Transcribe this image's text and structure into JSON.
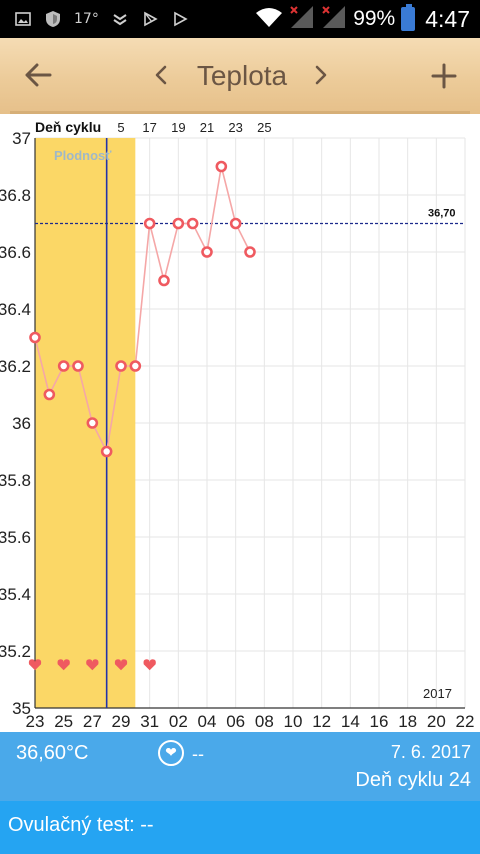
{
  "status_bar": {
    "left_icons": [
      "gallery-icon",
      "shield-icon",
      "weather-icon",
      "notification-icon",
      "play-store-icon",
      "play-store-icon"
    ],
    "temperature": "17°",
    "battery_percent": "99%",
    "time": "4:47"
  },
  "toolbar": {
    "back_icon": "←",
    "prev_icon": "‹",
    "title": "Teplota",
    "next_icon": "›",
    "add_icon": "+"
  },
  "chart_data": {
    "type": "line",
    "title": "Deň cyklu",
    "top_axis_ticks": [
      "5",
      "17",
      "19",
      "21",
      "23",
      "25"
    ],
    "x_tick_labels": [
      "23",
      "25",
      "27",
      "29",
      "31",
      "02",
      "04",
      "06",
      "08",
      "10",
      "12",
      "14",
      "16",
      "18",
      "20",
      "22"
    ],
    "y_tick_labels": [
      "37",
      "36.8",
      "36.6",
      "36.4",
      "36.2",
      "36",
      "35.8",
      "35.6",
      "35.4",
      "35.2",
      "35"
    ],
    "ylim": [
      35,
      37
    ],
    "x_day_range": [
      0,
      30
    ],
    "x_days": [
      0,
      1,
      2,
      3,
      4,
      5,
      6,
      7,
      8,
      9,
      10,
      11,
      12,
      13,
      14,
      15
    ],
    "values": [
      36.3,
      36.1,
      36.2,
      36.2,
      36.0,
      35.9,
      36.2,
      36.2,
      36.7,
      36.5,
      36.7,
      36.7,
      36.6,
      36.9,
      36.7,
      36.6
    ],
    "reference_line": {
      "value": 36.7,
      "label": "36,70"
    },
    "fertility_band": {
      "label": "Plodnosť",
      "start_day": 0,
      "end_day": 7
    },
    "ovulation_day": 5,
    "heart_days": [
      0,
      2,
      4,
      6,
      8
    ],
    "heart_temp": 35.15,
    "year_label": "2017",
    "colors": {
      "line": "#f5a7a7",
      "point": "#ef5a60",
      "fertility": "#fbd766",
      "ovulation_line": "#2233aa",
      "reference_line": "#1c2a8c",
      "heart": "#ef5a60"
    }
  },
  "info": {
    "temperature": "36,60°C",
    "heart_value": "--",
    "date": "7. 6. 2017",
    "cycle_day": "Deň cyklu 24"
  },
  "ovulation_test": {
    "label": "Ovulačný test: --"
  },
  "colors": {
    "toolbar_bg": "#ecca98",
    "info_bg": "#4aa9ea",
    "ovu_bg": "#25a4f2"
  }
}
